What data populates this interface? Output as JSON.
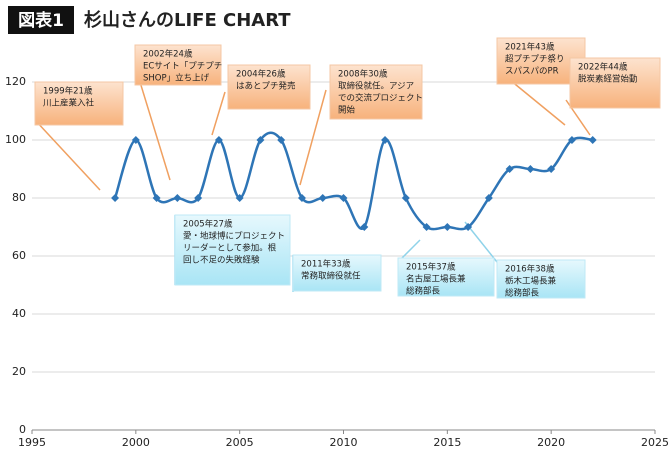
{
  "chart_data": {
    "type": "line",
    "badge": "図表1",
    "title": "杉山さんのLIFE CHART",
    "x": [
      1999,
      2000,
      2001,
      2002,
      2003,
      2004,
      2005,
      2006,
      2007,
      2008,
      2009,
      2010,
      2011,
      2012,
      2013,
      2014,
      2015,
      2016,
      2017,
      2018,
      2019,
      2020,
      2021,
      2022
    ],
    "values": [
      80,
      100,
      80,
      80,
      80,
      100,
      80,
      100,
      100,
      80,
      80,
      80,
      70,
      100,
      80,
      70,
      70,
      70,
      80,
      90,
      90,
      90,
      100,
      100
    ],
    "color": "#2e75b6",
    "xlim": [
      1995,
      2025
    ],
    "xticks": [
      1995,
      2000,
      2005,
      2010,
      2015,
      2020,
      2025
    ],
    "ylim": [
      0,
      120
    ],
    "yticks": [
      0,
      20,
      40,
      60,
      80,
      100,
      120
    ],
    "grid": true,
    "annotations": [
      {
        "style": "orange",
        "lines": [
          "1999年21歳",
          "川上産業入社"
        ]
      },
      {
        "style": "orange",
        "lines": [
          "2002年24歳",
          "ECサイト「プチプチ",
          "SHOP」立ち上げ"
        ]
      },
      {
        "style": "orange",
        "lines": [
          "2004年26歳",
          "はあとプチ発売"
        ]
      },
      {
        "style": "orange",
        "lines": [
          "2008年30歳",
          "取締役就任。アジア",
          "での交流プロジェクト",
          "開始"
        ]
      },
      {
        "style": "orange",
        "lines": [
          "2021年43歳",
          "超プチプチ祭り",
          "スパスパのPR"
        ]
      },
      {
        "style": "orange",
        "lines": [
          "2022年44歳",
          "脱炭素経営始動"
        ]
      },
      {
        "style": "blue",
        "lines": [
          "2005年27歳",
          "愛・地球博にプロジェクト",
          "リーダーとして参加。根",
          "回し不足の失敗経験"
        ]
      },
      {
        "style": "blue",
        "lines": [
          "2011年33歳",
          "常務取締役就任"
        ]
      },
      {
        "style": "blue",
        "lines": [
          "2015年37歳",
          "名古屋工場長兼",
          "総務部長"
        ]
      },
      {
        "style": "blue",
        "lines": [
          "2016年38歳",
          "栃木工場長兼",
          "総務部長"
        ]
      }
    ]
  }
}
